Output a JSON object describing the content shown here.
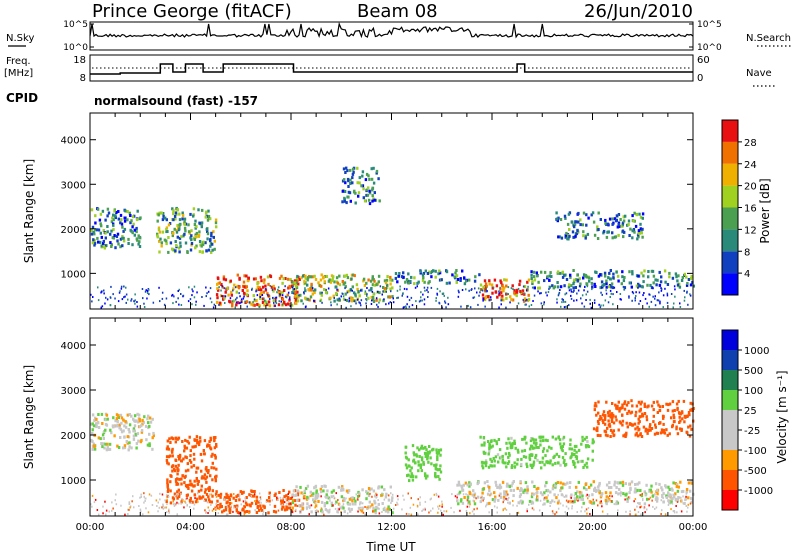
{
  "header": {
    "title": "Prince George (fitACF)",
    "beam": "Beam 08",
    "date": "26/Jun/2010"
  },
  "status": {
    "nsky_label": "N.Sky",
    "nsearch_label": "N.Search",
    "noise_ticks_left": [
      "10^5",
      "10^0"
    ],
    "noise_ticks_right": [
      "10^5",
      "10^0"
    ],
    "freq_label_1": "Freq.",
    "freq_label_2": "[MHz]",
    "freq_ticks": [
      "18",
      "8"
    ],
    "nave_ticks": [
      "60",
      "0"
    ],
    "nave_label": "Nave",
    "cpid_label": "CPID",
    "cpid_text": "normalsound (fast) -157"
  },
  "colors": {
    "power": [
      "#0000ff",
      "#1040c0",
      "#2a8a7a",
      "#4aa050",
      "#a0d020",
      "#f0b000",
      "#f07000",
      "#e81010"
    ],
    "velocity": [
      "#ff0000",
      "#ff5500",
      "#ff9a00",
      "#c8c8c8",
      "#c8c8c8",
      "#60d040",
      "#208050",
      "#1040b0",
      "#0000dd"
    ]
  },
  "chart_data": [
    {
      "type": "heatmap",
      "name": "power_panel",
      "xlabel": "",
      "ylabel": "Slant Range [km]",
      "xlim": [
        0,
        24
      ],
      "ylim": [
        200,
        4600
      ],
      "yticks": [
        "1000",
        "2000",
        "3000",
        "4000"
      ],
      "colorbar": {
        "label": "Power [dB]",
        "ticks": [
          "4",
          "8",
          "12",
          "16",
          "20",
          "24",
          "28"
        ]
      },
      "approximate_echo_regions": [
        {
          "t": [
            0,
            2.0
          ],
          "r": [
            1600,
            2500
          ],
          "value_db": 12
        },
        {
          "t": [
            2.6,
            5.0
          ],
          "r": [
            1500,
            2500
          ],
          "value_db": 16
        },
        {
          "t": [
            5.0,
            8.3
          ],
          "r": [
            300,
            1000
          ],
          "value_db": 26
        },
        {
          "t": [
            8.0,
            12.0
          ],
          "r": [
            400,
            1000
          ],
          "value_db": 20
        },
        {
          "t": [
            10.0,
            11.5
          ],
          "r": [
            2600,
            3400
          ],
          "value_db": 10
        },
        {
          "t": [
            12.0,
            15.5
          ],
          "r": [
            800,
            1100
          ],
          "value_db": 12
        },
        {
          "t": [
            15.5,
            17.5
          ],
          "r": [
            400,
            900
          ],
          "value_db": 26
        },
        {
          "t": [
            17.5,
            24
          ],
          "r": [
            700,
            1100
          ],
          "value_db": 12
        },
        {
          "t": [
            18.5,
            22.0
          ],
          "r": [
            1800,
            2400
          ],
          "value_db": 10
        }
      ]
    },
    {
      "type": "heatmap",
      "name": "velocity_panel",
      "xlabel": "Time UT",
      "ylabel": "Slant Range [km]",
      "xlim": [
        0,
        24
      ],
      "ylim": [
        200,
        4600
      ],
      "xticks": [
        "00:00",
        "04:00",
        "08:00",
        "12:00",
        "16:00",
        "20:00",
        "00:00"
      ],
      "yticks": [
        "1000",
        "2000",
        "3000",
        "4000"
      ],
      "colorbar": {
        "label": "Velocity [m s⁻¹]",
        "ticks": [
          "1000",
          "500",
          "100",
          "25",
          "-25",
          "-100",
          "-500",
          "-1000"
        ]
      },
      "approximate_echo_regions": [
        {
          "t": [
            0,
            2.5
          ],
          "r": [
            1700,
            2500
          ],
          "value_ms": 0
        },
        {
          "t": [
            3.0,
            5.0
          ],
          "r": [
            500,
            2000
          ],
          "value_ms": -300
        },
        {
          "t": [
            5.0,
            8.5
          ],
          "r": [
            300,
            800
          ],
          "value_ms": -400
        },
        {
          "t": [
            8.0,
            12.0
          ],
          "r": [
            300,
            900
          ],
          "value_ms": 0
        },
        {
          "t": [
            12.5,
            14.0
          ],
          "r": [
            1000,
            1800
          ],
          "value_ms": 200
        },
        {
          "t": [
            14.5,
            24
          ],
          "r": [
            500,
            1000
          ],
          "value_ms": 0
        },
        {
          "t": [
            15.5,
            20.0
          ],
          "r": [
            1300,
            2000
          ],
          "value_ms": 150
        },
        {
          "t": [
            20.0,
            24.0
          ],
          "r": [
            2000,
            2800
          ],
          "value_ms": -300
        }
      ]
    }
  ]
}
